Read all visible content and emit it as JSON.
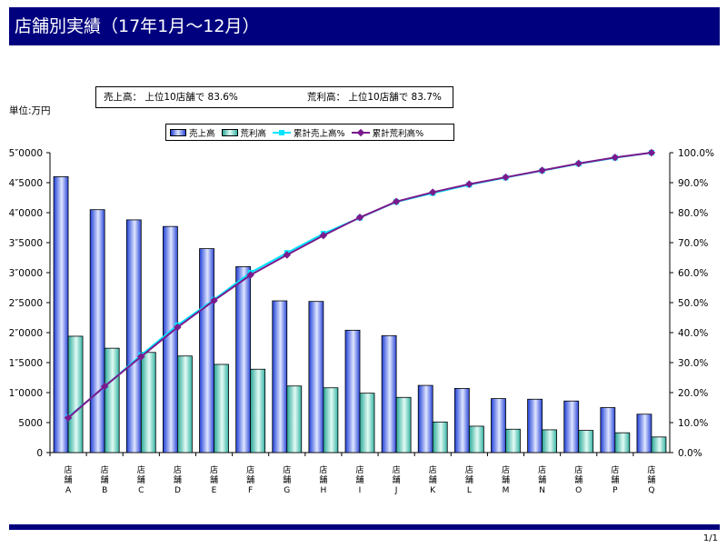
{
  "page": {
    "title": "店舗別実績（17年1月～12月）",
    "unit_label": "単位:万円",
    "summary_sales": "売上高：  上位10店舗で  83.6%",
    "summary_profit": "荒利高：  上位10店舗で  83.7%",
    "page_number": "1/1"
  },
  "legend": {
    "sales": "売上高",
    "profit": "荒利高",
    "cum_sales": "累計売上高%",
    "cum_profit": "累計荒利高%"
  },
  "colors": {
    "title_bg": "#00007f",
    "sales_bar": "#3355dd",
    "profit_bar": "#40c0b0",
    "cum_sales_line": "#00e5ff",
    "cum_profit_line": "#7a1a8c"
  },
  "chart_data": {
    "type": "bar",
    "categories": [
      "店舗A",
      "店舗B",
      "店舗C",
      "店舗D",
      "店舗E",
      "店舗F",
      "店舗G",
      "店舗H",
      "店舗I",
      "店舗J",
      "店舗K",
      "店舗L",
      "店舗M",
      "店舗N",
      "店舗O",
      "店舗P",
      "店舗Q"
    ],
    "category_labels": [
      [
        "店",
        "舗",
        "A"
      ],
      [
        "店",
        "舗",
        "B"
      ],
      [
        "店",
        "舗",
        "C"
      ],
      [
        "店",
        "舗",
        "D"
      ],
      [
        "店",
        "舗",
        "E"
      ],
      [
        "店",
        "舗",
        "F"
      ],
      [
        "店",
        "舗",
        "G"
      ],
      [
        "店",
        "舗",
        "H"
      ],
      [
        "店",
        "舗",
        "I"
      ],
      [
        "店",
        "舗",
        "J"
      ],
      [
        "店",
        "舗",
        "K"
      ],
      [
        "店",
        "舗",
        "L"
      ],
      [
        "店",
        "舗",
        "M"
      ],
      [
        "店",
        "舗",
        "N"
      ],
      [
        "店",
        "舗",
        "O"
      ],
      [
        "店",
        "舗",
        "P"
      ],
      [
        "店",
        "舗",
        "Q"
      ]
    ],
    "series": [
      {
        "name": "売上高",
        "type": "bar",
        "axis": "left",
        "values": [
          46000,
          40500,
          38800,
          37700,
          34000,
          31000,
          25300,
          25200,
          20400,
          19500,
          11200,
          10700,
          9000,
          8900,
          8600,
          7500,
          6400
        ]
      },
      {
        "name": "荒利高",
        "type": "bar",
        "axis": "left",
        "values": [
          19400,
          17400,
          16700,
          16100,
          14700,
          13900,
          11100,
          10800,
          9900,
          9200,
          5100,
          4400,
          3900,
          3800,
          3700,
          3300,
          2600
        ]
      },
      {
        "name": "累計売上高%",
        "type": "line",
        "axis": "right",
        "values": [
          11.8,
          22.0,
          32.5,
          42.5,
          51.0,
          60.0,
          66.6,
          73.0,
          78.3,
          83.6,
          86.5,
          89.3,
          91.7,
          94.0,
          96.3,
          98.3,
          100.0
        ]
      },
      {
        "name": "累計荒利高%",
        "type": "line",
        "axis": "right",
        "values": [
          11.6,
          22.1,
          32.0,
          41.8,
          50.7,
          59.2,
          65.9,
          72.4,
          78.4,
          83.7,
          86.8,
          89.5,
          91.8,
          94.1,
          96.4,
          98.4,
          100.0
        ]
      }
    ],
    "y_left": {
      "min": 0,
      "max": 50000,
      "tick_labels": [
        "0",
        "5000",
        "1″0000",
        "1″5000",
        "2″0000",
        "2″5000",
        "3″0000",
        "3″5000",
        "4″0000",
        "4″5000",
        "5″0000"
      ]
    },
    "y_right": {
      "min": 0,
      "max": 100,
      "tick_labels": [
        "0.0%",
        "10.0%",
        "20.0%",
        "30.0%",
        "40.0%",
        "50.0%",
        "60.0%",
        "70.0%",
        "80.0%",
        "90.0%",
        "100.0%"
      ]
    },
    "legend_position": "top-center",
    "grid": false
  }
}
